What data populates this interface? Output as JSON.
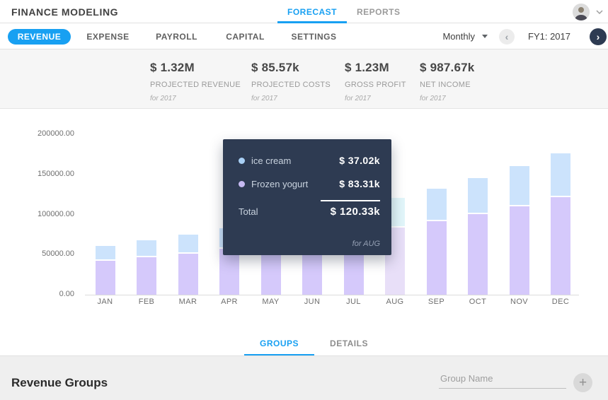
{
  "colors": {
    "accent": "#18a0f2",
    "dark_navy": "#2e3b52",
    "bar_frozen_yogurt": "#d5c9fb",
    "bar_ice_cream": "#cce3fc",
    "bar_frozen_yogurt_highlight": "#e8dff8",
    "bar_ice_cream_highlight": "#e2f6fa"
  },
  "header": {
    "title": "FINANCE MODELING",
    "tabs": [
      {
        "label": "FORECAST",
        "active": true
      },
      {
        "label": "REPORTS",
        "active": false
      }
    ]
  },
  "subnav": {
    "items": [
      {
        "label": "REVENUE",
        "active": true
      },
      {
        "label": "EXPENSE",
        "active": false
      },
      {
        "label": "PAYROLL",
        "active": false
      },
      {
        "label": "CAPITAL",
        "active": false
      },
      {
        "label": "SETTINGS",
        "active": false
      }
    ],
    "period_dropdown": {
      "value": "Monthly"
    },
    "fiscal_year_label": "FY1: 2017"
  },
  "kpis": [
    {
      "value": "$ 1.32M",
      "label": "PROJECTED REVENUE",
      "period": "for 2017"
    },
    {
      "value": "$ 85.57k",
      "label": "PROJECTED COSTS",
      "period": "for 2017"
    },
    {
      "value": "$ 1.23M",
      "label": "GROSS PROFIT",
      "period": "for 2017"
    },
    {
      "value": "$ 987.67k",
      "label": "NET INCOME",
      "period": "for 2017"
    }
  ],
  "chart_data": {
    "type": "bar",
    "stacked": true,
    "title": "",
    "xlabel": "",
    "ylabel": "",
    "grid": false,
    "legend_position": "none",
    "ylim": [
      0,
      200000
    ],
    "ytick_labels": [
      "200000.00",
      "150000.00",
      "100000.00",
      "50000.00",
      "0.00"
    ],
    "categories": [
      "JAN",
      "FEB",
      "MAR",
      "APR",
      "MAY",
      "JUN",
      "JUL",
      "AUG",
      "SEP",
      "OCT",
      "NOV",
      "DEC"
    ],
    "series": [
      {
        "name": "Frozen yogurt",
        "color": "#d5c9fb",
        "values": [
          42000,
          47000,
          51500,
          57000,
          63000,
          69000,
          76000,
          83310,
          91500,
          100500,
          110500,
          121500
        ]
      },
      {
        "name": "ice cream",
        "color": "#cce3fc",
        "values": [
          19000,
          21000,
          23000,
          25500,
          28000,
          31000,
          34000,
          37020,
          40500,
          45000,
          49500,
          54500
        ]
      }
    ],
    "highlighted_category": "AUG"
  },
  "tooltip": {
    "rows": [
      {
        "label": "ice cream",
        "value": "$ 37.02k",
        "dot_color": "#a9d0f5"
      },
      {
        "label": "Frozen yogurt",
        "value": "$ 83.31k",
        "dot_color": "#c6baf2"
      }
    ],
    "total_label": "Total",
    "total_value": "$ 120.33k",
    "footnote": "for AUG"
  },
  "bottom_tabs": [
    {
      "label": "GROUPS",
      "active": true
    },
    {
      "label": "DETAILS",
      "active": false
    }
  ],
  "groups_section": {
    "title": "Revenue Groups",
    "group_name_placeholder": "Group Name"
  }
}
